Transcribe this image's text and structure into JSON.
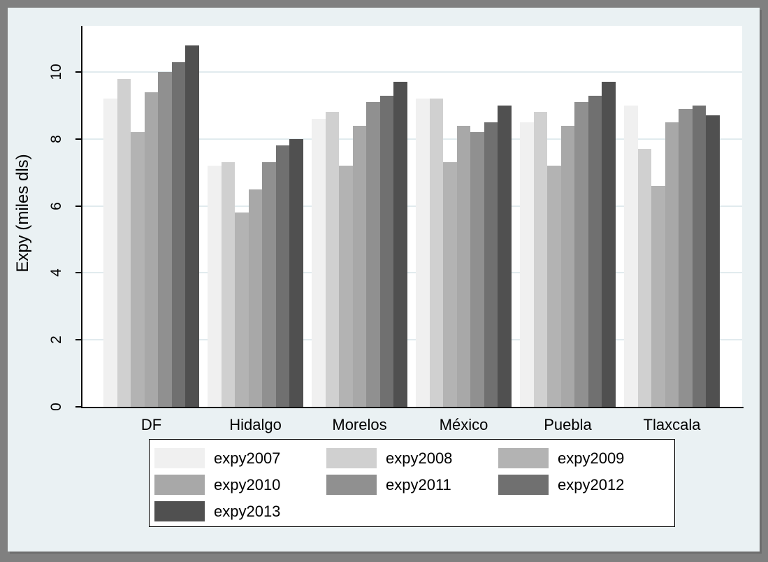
{
  "window": {
    "border_color": "#808080",
    "canvas_background": "#eaf1f3",
    "plot_background": "#ffffff",
    "gridline_color": "#e1ebee",
    "axis_color": "#000000"
  },
  "chart_data": {
    "type": "bar",
    "title": "",
    "xlabel": "",
    "ylabel": "Expy (miles dls)",
    "grid": true,
    "legend_position": "bottom",
    "yticks": [
      0,
      2,
      4,
      6,
      8,
      10
    ],
    "ylim": [
      0,
      11.4
    ],
    "categories": [
      "DF",
      "Hidalgo",
      "Morelos",
      "México",
      "Puebla",
      "Tlaxcala"
    ],
    "series": [
      {
        "name": "expy2007",
        "color": "#f0f0f0",
        "values": [
          9.2,
          7.2,
          8.6,
          9.2,
          8.5,
          9.0
        ]
      },
      {
        "name": "expy2008",
        "color": "#d0d0d0",
        "values": [
          9.8,
          7.3,
          8.8,
          9.2,
          8.8,
          7.7
        ]
      },
      {
        "name": "expy2009",
        "color": "#b3b3b3",
        "values": [
          8.2,
          5.8,
          7.2,
          7.3,
          7.2,
          6.6
        ]
      },
      {
        "name": "expy2010",
        "color": "#a8a8a8",
        "values": [
          9.4,
          6.5,
          8.4,
          8.4,
          8.4,
          8.5
        ]
      },
      {
        "name": "expy2011",
        "color": "#909090",
        "values": [
          10.0,
          7.3,
          9.1,
          8.2,
          9.1,
          8.9
        ]
      },
      {
        "name": "expy2012",
        "color": "#707070",
        "values": [
          10.3,
          7.8,
          9.3,
          8.5,
          9.3,
          9.0
        ]
      },
      {
        "name": "expy2013",
        "color": "#505050",
        "values": [
          10.8,
          8.0,
          9.7,
          9.0,
          9.7,
          8.7
        ]
      }
    ]
  }
}
